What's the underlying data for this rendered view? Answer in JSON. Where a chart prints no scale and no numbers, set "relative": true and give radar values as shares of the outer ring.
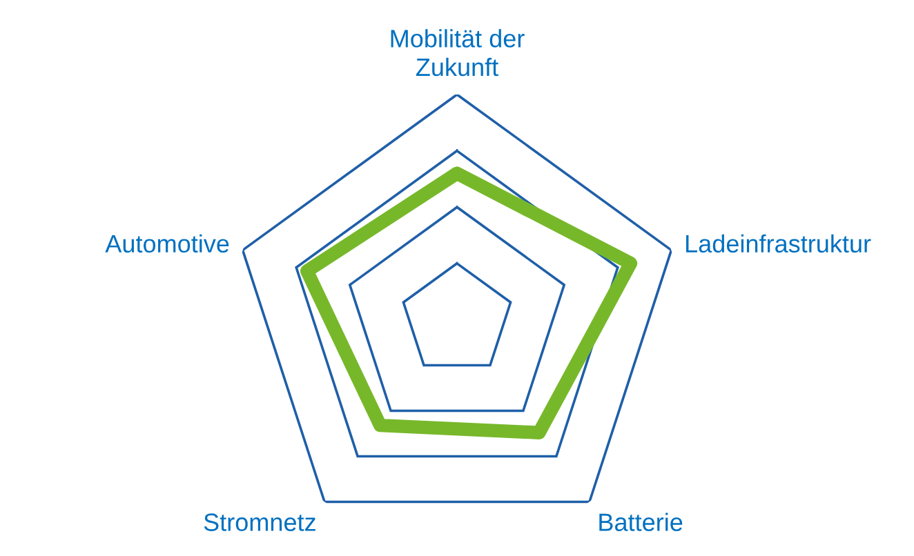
{
  "chart_data": {
    "type": "radar",
    "relative": true,
    "grid": true,
    "categories": [
      "Mobilität der\nZukunft",
      "Ladeinfrastruktur",
      "Batterie",
      "Stromnetz",
      "Automotive"
    ],
    "series": [
      {
        "color": "#77b82a",
        "values": [
          0.65,
          0.81,
          0.62,
          0.58,
          0.7
        ]
      }
    ]
  }
}
